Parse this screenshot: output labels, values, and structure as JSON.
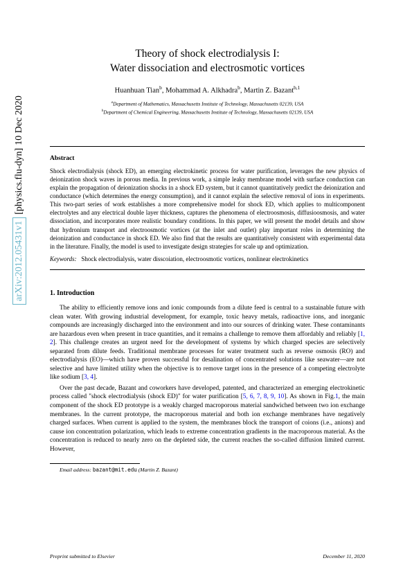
{
  "arxiv": {
    "id": "arXiv:2012.05431v1",
    "category": "[physics.flu-dyn]",
    "date": "10 Dec 2020"
  },
  "title_line1": "Theory of shock electrodialysis I:",
  "title_line2": "Water dissociation and electrosmotic vortices",
  "authors_html": "Huanhuan Tian<sup>b</sup>, Mohammad A. Alkhadra<sup>b</sup>, Martin Z. Bazant<sup>b,1</sup>",
  "affil_a": "<sup>a</sup>Department of Mathematics, Massachusetts Institute of Technology, Massachusetts 02139, USA",
  "affil_b": "<sup>b</sup>Department of Chemical Engineering, Massachusetts Institute of Technology, Massachusetts 02139, USA",
  "abstract_heading": "Abstract",
  "abstract_text": "Shock electrodialysis (shock ED), an emerging electrokinetic process for water purification, leverages the new physics of deionization shock waves in porous media. In previous work, a simple leaky membrane model with surface conduction can explain the propagation of deionization shocks in a shock ED system, but it cannot quantitatively predict the deionization and conductance (which determines the energy consumption), and it cannot explain the selective removal of ions in experiments. This two-part series of work establishes a more comprehensive model for shock ED, which applies to multicomponent electrolytes and any electrical double layer thickness, captures the phenomena of electroosmosis, diffusioosmosis, and water dissociation, and incorporates more realistic boundary conditions. In this paper, we will present the model details and show that hydronium transport and electroosmotic vortices (at the inlet and outlet) play important roles in determining the deionization and conductance in shock ED. We also find that the results are quantitatively consistent with experimental data in the literature. Finally, the model is used to investigate design strategies for scale up and optimization.",
  "keywords_label": "Keywords:",
  "keywords_text": "Shock electrodialysis, water disscoiation, electroosmotic vortices, nonlinear electrokinetics",
  "section1_heading": "1. Introduction",
  "para1": "The ability to efficiently remove ions and ionic compounds from a dilute feed is central to a sustainable future with clean water. With growing industrial development, for example, toxic heavy metals, radioactive ions, and inorganic compounds are increasingly discharged into the environment and into our sources of drinking water. These contaminants are hazardous even when present in trace quantities, and it remains a challenge to remove them affordably and reliably [1, 2]. This challenge creates an urgent need for the development of systems by which charged species are selectively separated from dilute feeds. Traditional membrane processes for water treatment such as reverse osmosis (RO) and electrodialysis (EO)—which have proven successful for desalination of concentrated solutions like seawater—are not selective and have limited utility when the objective is to remove target ions in the presence of a competing electrolyte like sodium [3, 4].",
  "para2": "Over the past decade, Bazant and coworkers have developed, patented, and characterized an emerging electrokinetic process called \"shock electrodialysis (shock ED)\" for water purification [5, 6, 7, 8, 9, 10]. As shown in Fig.1, the main component of the shock ED prototype is a weakly charged macroporous material sandwiched between two ion exchange membranes. In the current prototype, the macroporous material and both ion exchange membranes have negatively charged surfaces. When current is applied to the system, the membranes block the transport of coions (i.e., anions) and cause ion concentration polarization, which leads to extreme concentration gradients in the macroporous material. As the concentration is reduced to nearly zero on the depleted side, the current reaches the so-called diffusion limited current. However,",
  "email_label": "Email address:",
  "email_value": "bazant@mit.edu",
  "email_person": "(Martin Z. Bazant)",
  "preprint_left": "Preprint submitted to Elsevier",
  "preprint_right": "December 11, 2020"
}
